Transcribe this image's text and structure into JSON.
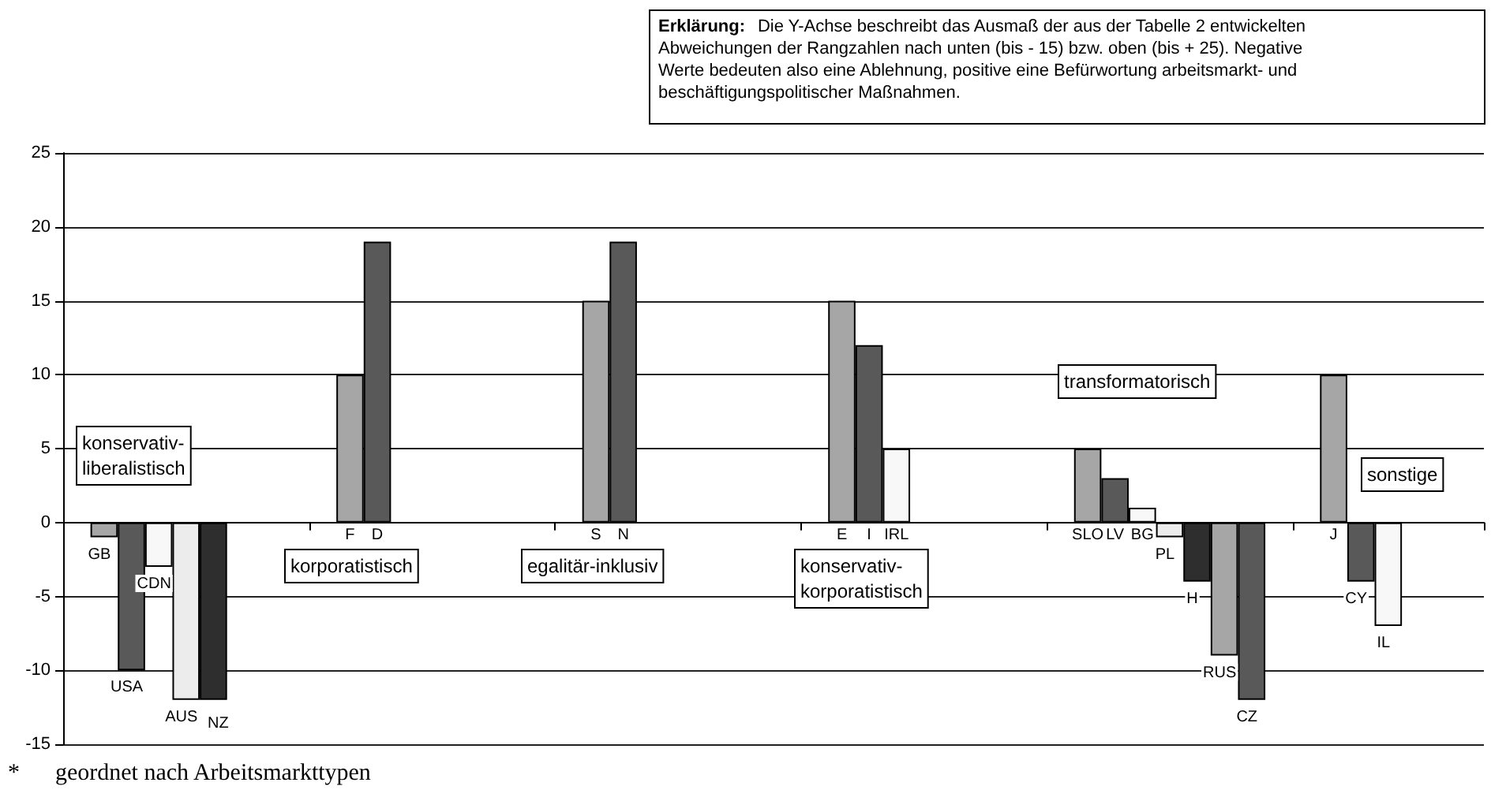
{
  "chart_data": {
    "type": "bar",
    "categories": [
      null,
      "GB",
      "USA",
      "CDN",
      "AUS",
      "NZ",
      null,
      null,
      null,
      null,
      "F",
      "D",
      null,
      null,
      null,
      null,
      null,
      null,
      null,
      "S",
      "N",
      null,
      null,
      null,
      null,
      null,
      null,
      null,
      "E",
      "I",
      "IRL",
      null,
      null,
      null,
      null,
      null,
      null,
      "SLO",
      "LV",
      "BG",
      "PL",
      "H",
      "RUS",
      "CZ",
      null,
      null,
      "J",
      "CY",
      "IL",
      null,
      null,
      null
    ],
    "values": [
      null,
      -1,
      -10,
      -3,
      -12,
      -12,
      null,
      null,
      null,
      null,
      10,
      19,
      null,
      null,
      null,
      null,
      null,
      null,
      null,
      15,
      19,
      null,
      null,
      null,
      null,
      null,
      null,
      null,
      15,
      12,
      5,
      null,
      null,
      null,
      null,
      null,
      null,
      5,
      3,
      1,
      -1,
      -4,
      -9,
      -12,
      null,
      null,
      10,
      -4,
      -7,
      null,
      null,
      null
    ],
    "colors": [
      null,
      "#a6a6a6",
      "#595959",
      "#f8f8f8",
      "#ececec",
      "#2e2e2e",
      null,
      null,
      null,
      null,
      "#a6a6a6",
      "#595959",
      null,
      null,
      null,
      null,
      null,
      null,
      null,
      "#a6a6a6",
      "#595959",
      null,
      null,
      null,
      null,
      null,
      null,
      null,
      "#a6a6a6",
      "#595959",
      "#f8f8f8",
      null,
      null,
      null,
      null,
      null,
      null,
      "#a6a6a6",
      "#595959",
      "#f8f8f8",
      "#ececec",
      "#2e2e2e",
      "#a6a6a6",
      "#595959",
      null,
      null,
      "#a6a6a6",
      "#595959",
      "#f8f8f8",
      null,
      null,
      null
    ],
    "ylim": [
      -15,
      25
    ],
    "yticks": [
      -15,
      -10,
      -5,
      0,
      5,
      10,
      15,
      20,
      25
    ],
    "grid": "y",
    "annotations": [
      "Erklärung: Die Y-Achse beschreibt das Ausmaß der aus der Tabelle 2 entwickelten Abweichungen der Rangzahlen nach unten (bis - 15) bzw. oben (bis + 25). Negative Werte bedeuten also eine Ablehnung, positive eine Befürwortung arbeitsmarkt- und beschäftigungspolitischer Maßnahmen.",
      "konservativ-\nliberalistisch",
      "korporatistisch",
      "egalitär-inklusiv",
      "konservativ-\nkorporatistisch",
      "transformatorisch",
      "sonstige",
      "* geordnet nach Arbeitsmarkttypen"
    ]
  }
}
